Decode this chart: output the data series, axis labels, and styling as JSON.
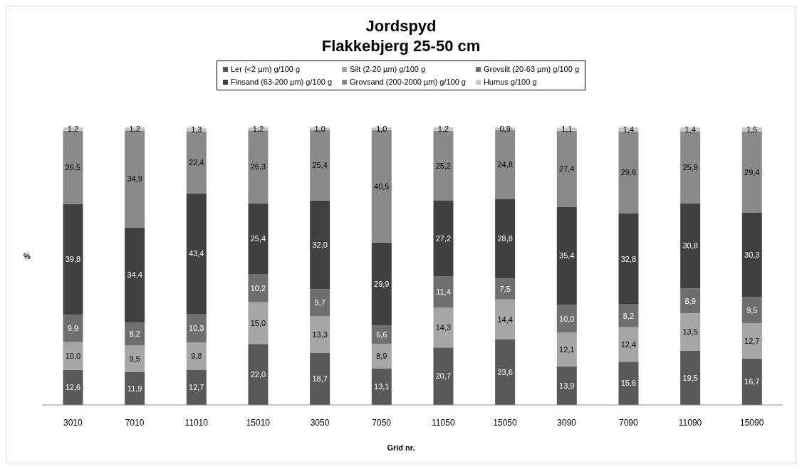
{
  "chart_data": {
    "type": "bar",
    "stacked": true,
    "title": "Jordspyd",
    "subtitle": "Flakkebjerg 25-50 cm",
    "xlabel": "Grid nr.",
    "ylabel": "%",
    "legend": "top",
    "tick_labels": "x",
    "ylim": [
      0,
      100
    ],
    "grid": false,
    "categories": [
      "3010",
      "7010",
      "11010",
      "15010",
      "3050",
      "7050",
      "11050",
      "15050",
      "3090",
      "7090",
      "11090",
      "15090"
    ],
    "series": [
      {
        "name": "Ler (<2 µm) g/100 g",
        "color": "#595959",
        "values": [
          12.6,
          11.9,
          12.7,
          22.0,
          18.7,
          13.1,
          20.7,
          23.6,
          13.9,
          15.6,
          19.5,
          16.7
        ],
        "value_labels": [
          "12,6",
          "11,9",
          "12,7",
          "22,0",
          "18,7",
          "13,1",
          "20,7",
          "23,6",
          "13,9",
          "15,6",
          "19,5",
          "16,7"
        ]
      },
      {
        "name": "Silt (2-20 µm) g/100 g",
        "color": "#a6a6a6",
        "values": [
          10.0,
          9.5,
          9.8,
          15.0,
          13.3,
          8.9,
          14.3,
          14.4,
          12.1,
          12.4,
          13.5,
          12.7
        ],
        "value_labels": [
          "10,0",
          "9,5",
          "9,8",
          "15,0",
          "13,3",
          "8,9",
          "14,3",
          "14,4",
          "12,1",
          "12,4",
          "13,5",
          "12,7"
        ]
      },
      {
        "name": "Grovsilt (20-63 µm) g/100 g",
        "color": "#6f6f6f",
        "values": [
          9.9,
          8.2,
          10.3,
          10.2,
          9.7,
          6.6,
          11.4,
          7.5,
          10.0,
          8.2,
          8.9,
          9.5
        ],
        "value_labels": [
          "9,9",
          "8,2",
          "10,3",
          "10,2",
          "9,7",
          "6,6",
          "11,4",
          "7,5",
          "10,0",
          "8,2",
          "8,9",
          "9,5"
        ]
      },
      {
        "name": "Finsand (63-200 µm) g/100 g",
        "color": "#404040",
        "values": [
          39.8,
          34.4,
          43.4,
          25.4,
          32.0,
          29.9,
          27.2,
          28.8,
          35.4,
          32.8,
          30.8,
          30.3
        ],
        "value_labels": [
          "39,8",
          "34,4",
          "43,4",
          "25,4",
          "32,0",
          "29,9",
          "27,2",
          "28,8",
          "35,4",
          "32,8",
          "30,8",
          "30,3"
        ]
      },
      {
        "name": "Grovsand (200-2000 µm) g/100 g",
        "color": "#8a8a8a",
        "values": [
          26.5,
          34.9,
          22.4,
          26.3,
          25.4,
          40.5,
          25.2,
          24.8,
          27.4,
          29.6,
          25.9,
          29.4
        ],
        "value_labels": [
          "26,5",
          "34,9",
          "22,4",
          "26,3",
          "25,4",
          "40,5",
          "25,2",
          "24,8",
          "27,4",
          "29,6",
          "25,9",
          "29,4"
        ]
      },
      {
        "name": "Humus g/100 g",
        "color": "#c8c8c8",
        "values": [
          1.2,
          1.2,
          1.3,
          1.2,
          1.0,
          1.0,
          1.2,
          0.9,
          1.1,
          1.4,
          1.4,
          1.5
        ],
        "value_labels": [
          "1,2",
          "1,2",
          "1,3",
          "1,2",
          "1,0",
          "1,0",
          "1,2",
          "0,9",
          "1,1",
          "1,4",
          "1,4",
          "1,5"
        ]
      }
    ]
  }
}
